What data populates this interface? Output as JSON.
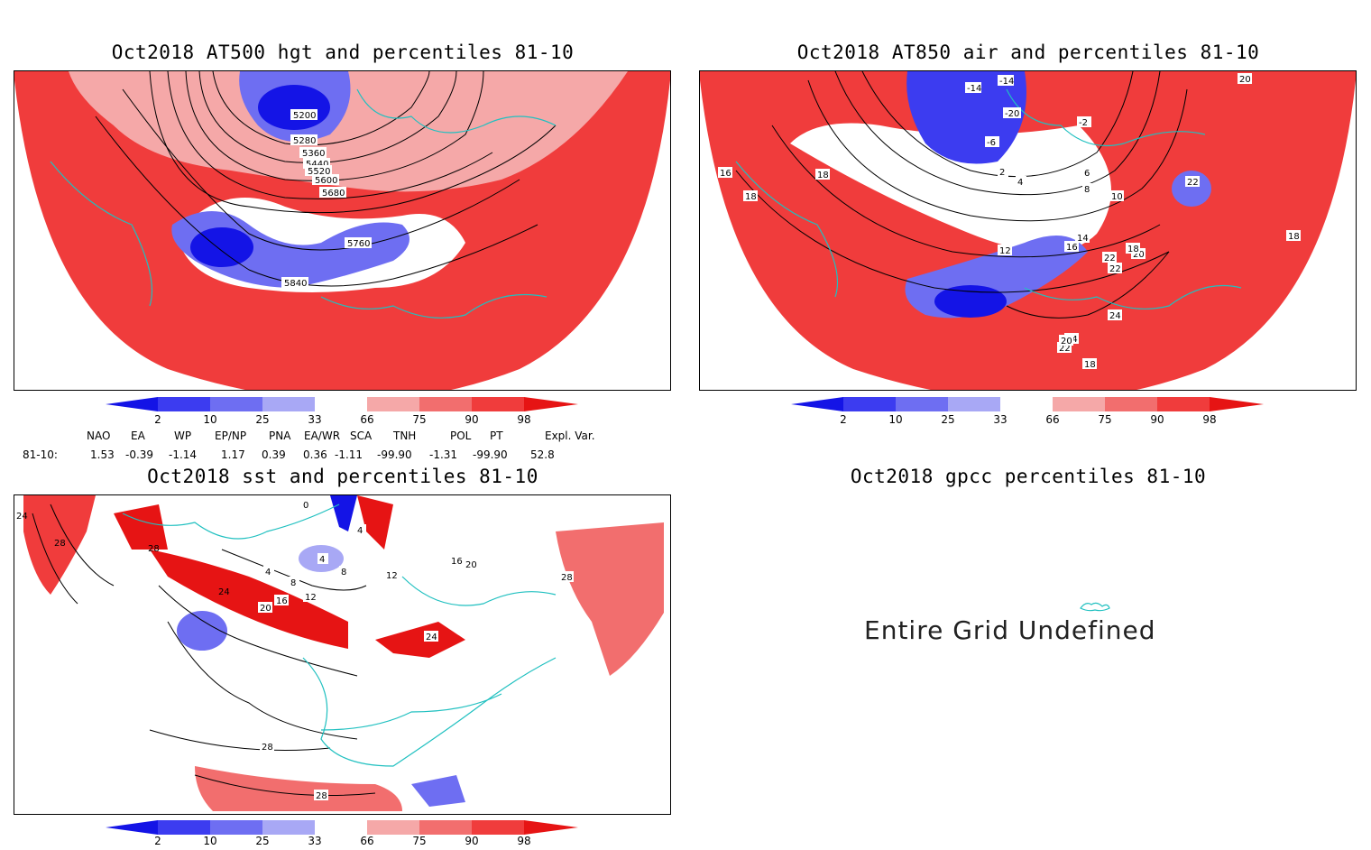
{
  "panels": {
    "hgt": {
      "title": "Oct2018 AT500 hgt and percentiles 81-10",
      "contour_labels": [
        "5200",
        "5280",
        "5360",
        "5440",
        "5520",
        "5600",
        "5680",
        "5760",
        "5840"
      ]
    },
    "air": {
      "title": "Oct2018 AT850 air and percentiles 81-10",
      "contour_labels": [
        "-14",
        "-14",
        "-20",
        "-6",
        "-2",
        "2",
        "4",
        "6",
        "8",
        "10",
        "12",
        "14",
        "16",
        "16",
        "18",
        "18",
        "20",
        "22",
        "22",
        "24",
        "24",
        "22",
        "20",
        "18",
        "18",
        "20",
        "18",
        "22"
      ]
    },
    "sst": {
      "title": "Oct2018 sst and percentiles 81-10",
      "contour_labels": [
        "24",
        "28",
        "28",
        "24",
        "20",
        "16",
        "12",
        "8",
        "4",
        "4",
        "8",
        "12",
        "0",
        "4",
        "16",
        "20",
        "24",
        "28",
        "28",
        "28"
      ]
    },
    "gpcc": {
      "title": "Oct2018 gpcc percentiles 81-10",
      "message": "Entire Grid Undefined"
    }
  },
  "colorbar": {
    "ticks": [
      "2",
      "10",
      "25",
      "33",
      "66",
      "75",
      "90",
      "98"
    ],
    "colors": [
      "#1414e6",
      "#3c3cf0",
      "#6e6ef2",
      "#a8a8f5",
      "#ffffff",
      "#f5a8a8",
      "#f26e6e",
      "#f03c3c",
      "#e61414"
    ]
  },
  "indices": {
    "headers": [
      "NAO",
      "EA",
      "WP",
      "EP/NP",
      "PNA",
      "EA/WR",
      "SCA",
      "TNH",
      "POL",
      "PT",
      "Expl. Var."
    ],
    "row_label": "81-10:",
    "values": [
      "1.53",
      "-0.39",
      "-1.14",
      "1.17",
      "0.39",
      "0.36",
      "-1.11",
      "-99.90",
      "-1.31",
      "-99.90",
      "52.8"
    ]
  }
}
